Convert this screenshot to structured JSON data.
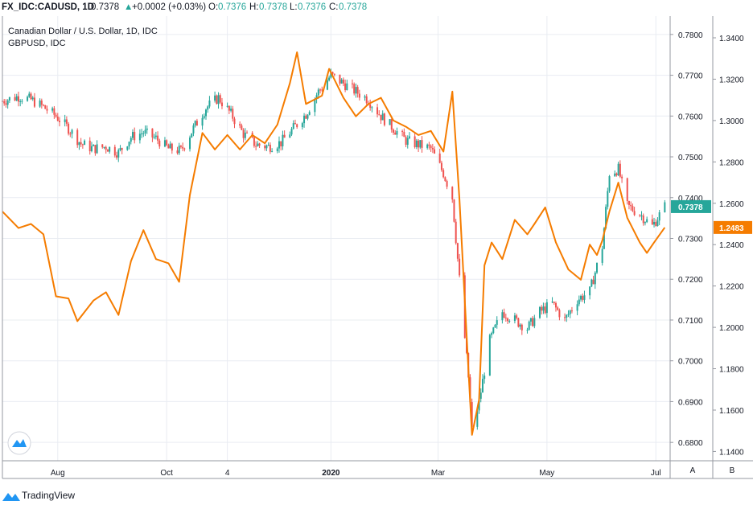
{
  "header": {
    "symbol": "FX_IDC:CADUSD, 1D",
    "last": "0.7378",
    "change_arrow": "▲",
    "change": "+0.0002 (+0.03%)",
    "o_label": "O:",
    "o_value": "0.7376",
    "h_label": "H:",
    "h_value": "0.7378",
    "l_label": "L:",
    "l_value": "0.7376",
    "c_label": "C:",
    "c_value": "0.7378"
  },
  "legend": {
    "main": "Canadian Dollar / U.S. Dollar, 1D, IDC",
    "overlay": "GBPUSD, IDC"
  },
  "scale_buttons": {
    "a": "A",
    "b": "B"
  },
  "branding": {
    "icon": "tradingview-icon",
    "name": "TradingView"
  },
  "colors": {
    "up": "#26a69a",
    "down": "#ef5350",
    "overlay": "#f57c00",
    "grid": "#e9ecf2"
  },
  "chart_data": {
    "type": "line",
    "x_tick_labels": [
      "Aug",
      "Oct",
      "4",
      "2020",
      "Mar",
      "May",
      "Jul"
    ],
    "x_tick_dates": [
      "2019-08-01",
      "2019-10-01",
      "2019-11-04",
      "2020-01-01",
      "2020-03-01",
      "2020-05-01",
      "2020-07-01"
    ],
    "x_range": [
      "2019-07-01",
      "2020-07-09"
    ],
    "y_left_ticks": [
      "0.7800",
      "0.7700",
      "0.7600",
      "0.7500",
      "0.7400",
      "0.7300",
      "0.7200",
      "0.7100",
      "0.7000",
      "0.6900",
      "0.6800"
    ],
    "y_right_ticks": [
      "1.3400",
      "1.3200",
      "1.3000",
      "1.2800",
      "1.2600",
      "1.2400",
      "1.2200",
      "1.2000",
      "1.1800",
      "1.1600",
      "1.1400"
    ],
    "ylim_left": [
      0.6755,
      0.7845
    ],
    "ylim_right": [
      1.1355,
      1.3505
    ],
    "last_value_labels": [
      {
        "series": "CADUSD",
        "value": "0.7378"
      },
      {
        "series": "GBPUSD",
        "value": "1.2483"
      }
    ],
    "series": [
      {
        "axis": "left",
        "style": "candlestick",
        "points": [
          [
            "2019-07-01",
            0.7637
          ],
          [
            "2019-07-10",
            0.7648
          ],
          [
            "2019-07-17",
            0.764
          ],
          [
            "2019-07-24",
            0.7622
          ],
          [
            "2019-07-31",
            0.76
          ],
          [
            "2019-08-07",
            0.757
          ],
          [
            "2019-08-14",
            0.7532
          ],
          [
            "2019-08-21",
            0.752
          ],
          [
            "2019-08-28",
            0.7525
          ],
          [
            "2019-09-04",
            0.751
          ],
          [
            "2019-09-11",
            0.7548
          ],
          [
            "2019-09-18",
            0.756
          ],
          [
            "2019-09-25",
            0.7545
          ],
          [
            "2019-10-02",
            0.752
          ],
          [
            "2019-10-09",
            0.7515
          ],
          [
            "2019-10-16",
            0.757
          ],
          [
            "2019-10-23",
            0.762
          ],
          [
            "2019-10-30",
            0.7645
          ],
          [
            "2019-11-06",
            0.7605
          ],
          [
            "2019-11-13",
            0.7556
          ],
          [
            "2019-11-20",
            0.753
          ],
          [
            "2019-11-27",
            0.7525
          ],
          [
            "2019-12-04",
            0.7535
          ],
          [
            "2019-12-11",
            0.757
          ],
          [
            "2019-12-18",
            0.7605
          ],
          [
            "2019-12-25",
            0.766
          ],
          [
            "2020-01-01",
            0.77
          ],
          [
            "2020-01-08",
            0.768
          ],
          [
            "2020-01-15",
            0.766
          ],
          [
            "2020-01-22",
            0.764
          ],
          [
            "2020-01-29",
            0.76
          ],
          [
            "2020-02-05",
            0.757
          ],
          [
            "2020-02-12",
            0.754
          ],
          [
            "2020-02-19",
            0.753
          ],
          [
            "2020-02-26",
            0.752
          ],
          [
            "2020-03-04",
            0.746
          ],
          [
            "2020-03-09",
            0.74
          ],
          [
            "2020-03-13",
            0.72
          ],
          [
            "2020-03-18",
            0.696
          ],
          [
            "2020-03-20",
            0.683
          ],
          [
            "2020-03-24",
            0.69
          ],
          [
            "2020-03-30",
            0.705
          ],
          [
            "2020-04-06",
            0.712
          ],
          [
            "2020-04-13",
            0.71
          ],
          [
            "2020-04-20",
            0.708
          ],
          [
            "2020-04-27",
            0.712
          ],
          [
            "2020-05-04",
            0.714
          ],
          [
            "2020-05-11",
            0.71
          ],
          [
            "2020-05-18",
            0.715
          ],
          [
            "2020-05-25",
            0.717
          ],
          [
            "2020-06-01",
            0.728
          ],
          [
            "2020-06-05",
            0.746
          ],
          [
            "2020-06-10",
            0.747
          ],
          [
            "2020-06-15",
            0.738
          ],
          [
            "2020-06-22",
            0.736
          ],
          [
            "2020-06-29",
            0.733
          ],
          [
            "2020-07-06",
            0.7378
          ]
        ]
      },
      {
        "name": "GBPUSD",
        "axis": "right",
        "style": "line",
        "points": [
          [
            "2019-07-01",
            1.256
          ],
          [
            "2019-07-10",
            1.248
          ],
          [
            "2019-07-17",
            1.25
          ],
          [
            "2019-07-24",
            1.245
          ],
          [
            "2019-07-31",
            1.215
          ],
          [
            "2019-08-07",
            1.214
          ],
          [
            "2019-08-12",
            1.203
          ],
          [
            "2019-08-21",
            1.213
          ],
          [
            "2019-08-28",
            1.217
          ],
          [
            "2019-09-04",
            1.206
          ],
          [
            "2019-09-11",
            1.232
          ],
          [
            "2019-09-18",
            1.247
          ],
          [
            "2019-09-25",
            1.233
          ],
          [
            "2019-10-02",
            1.231
          ],
          [
            "2019-10-08",
            1.222
          ],
          [
            "2019-10-14",
            1.264
          ],
          [
            "2019-10-21",
            1.294
          ],
          [
            "2019-10-28",
            1.286
          ],
          [
            "2019-11-04",
            1.293
          ],
          [
            "2019-11-11",
            1.286
          ],
          [
            "2019-11-18",
            1.293
          ],
          [
            "2019-11-25",
            1.289
          ],
          [
            "2019-12-02",
            1.298
          ],
          [
            "2019-12-09",
            1.318
          ],
          [
            "2019-12-13",
            1.333
          ],
          [
            "2019-12-18",
            1.308
          ],
          [
            "2019-12-27",
            1.312
          ],
          [
            "2019-12-31",
            1.325
          ],
          [
            "2020-01-08",
            1.311
          ],
          [
            "2020-01-15",
            1.302
          ],
          [
            "2020-01-22",
            1.308
          ],
          [
            "2020-01-29",
            1.311
          ],
          [
            "2020-02-05",
            1.3
          ],
          [
            "2020-02-12",
            1.297
          ],
          [
            "2020-02-19",
            1.293
          ],
          [
            "2020-02-26",
            1.295
          ],
          [
            "2020-03-04",
            1.285
          ],
          [
            "2020-03-09",
            1.314
          ],
          [
            "2020-03-13",
            1.262
          ],
          [
            "2020-03-18",
            1.18
          ],
          [
            "2020-03-20",
            1.148
          ],
          [
            "2020-03-24",
            1.165
          ],
          [
            "2020-03-27",
            1.23
          ],
          [
            "2020-03-31",
            1.241
          ],
          [
            "2020-04-06",
            1.233
          ],
          [
            "2020-04-13",
            1.252
          ],
          [
            "2020-04-20",
            1.245
          ],
          [
            "2020-04-24",
            1.25
          ],
          [
            "2020-04-30",
            1.258
          ],
          [
            "2020-05-06",
            1.241
          ],
          [
            "2020-05-13",
            1.228
          ],
          [
            "2020-05-20",
            1.223
          ],
          [
            "2020-05-25",
            1.24
          ],
          [
            "2020-05-29",
            1.235
          ],
          [
            "2020-06-01",
            1.242
          ],
          [
            "2020-06-05",
            1.256
          ],
          [
            "2020-06-10",
            1.27
          ],
          [
            "2020-06-15",
            1.253
          ],
          [
            "2020-06-22",
            1.241
          ],
          [
            "2020-06-26",
            1.236
          ],
          [
            "2020-06-30",
            1.241
          ],
          [
            "2020-07-06",
            1.2483
          ]
        ]
      }
    ]
  }
}
